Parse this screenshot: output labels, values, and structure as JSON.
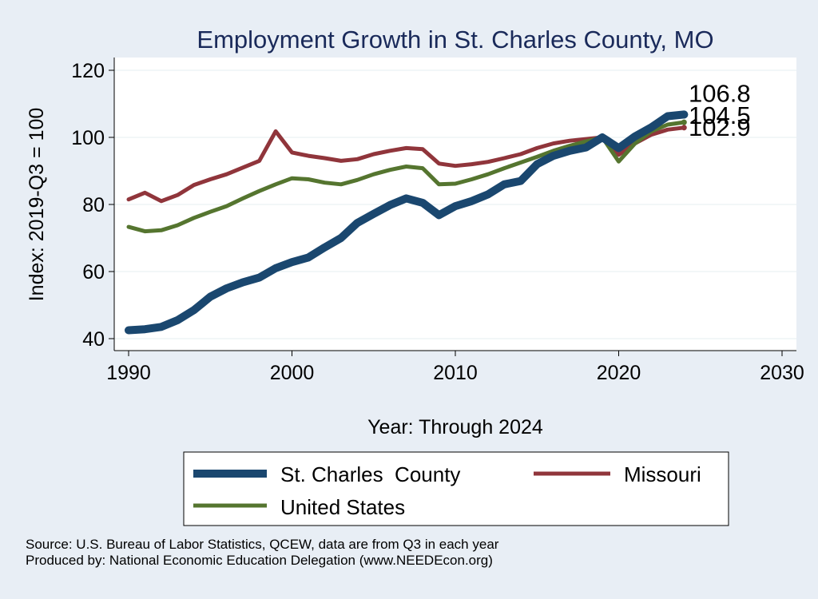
{
  "chart_data": {
    "type": "line",
    "title": "Employment Growth in St. Charles County, MO",
    "xlabel": "Year: Through 2024",
    "ylabel": "Index: 2019-Q3 = 100",
    "xlim": [
      1990,
      2030
    ],
    "ylim": [
      40,
      120
    ],
    "xticks": [
      "1990",
      "2000",
      "2010",
      "2020",
      "2030"
    ],
    "yticks": [
      "40",
      "60",
      "80",
      "100",
      "120"
    ],
    "grid": true,
    "legend_position": "bottom",
    "x": [
      1990,
      1991,
      1992,
      1993,
      1994,
      1995,
      1996,
      1997,
      1998,
      1999,
      2000,
      2001,
      2002,
      2003,
      2004,
      2005,
      2006,
      2007,
      2008,
      2009,
      2010,
      2011,
      2012,
      2013,
      2014,
      2015,
      2016,
      2017,
      2018,
      2019,
      2020,
      2021,
      2022,
      2023,
      2024
    ],
    "series": [
      {
        "name": "St. Charles  County",
        "color": "#1a476f",
        "values": [
          42.5,
          42.8,
          43.5,
          45.5,
          48.5,
          52.5,
          55.0,
          56.8,
          58.2,
          61.0,
          62.8,
          64.2,
          67.2,
          70.0,
          74.5,
          77.2,
          79.8,
          81.8,
          80.5,
          76.8,
          79.5,
          81.0,
          83.0,
          86.0,
          87.0,
          92.0,
          94.5,
          96.0,
          97.0,
          100.0,
          96.8,
          100.3,
          103.0,
          106.3,
          106.8
        ],
        "end_label": "106.8"
      },
      {
        "name": "Missouri",
        "color": "#90353b",
        "values": [
          81.5,
          83.5,
          81.0,
          82.8,
          85.8,
          87.5,
          89.0,
          91.0,
          93.0,
          101.8,
          95.5,
          94.5,
          93.8,
          93.0,
          93.5,
          95.0,
          96.0,
          96.8,
          96.5,
          92.2,
          91.5,
          92.0,
          92.7,
          93.8,
          95.0,
          96.8,
          98.2,
          99.0,
          99.5,
          100.0,
          94.8,
          98.2,
          100.8,
          102.3,
          102.9
        ],
        "end_label": "102.9"
      },
      {
        "name": "United States",
        "color": "#55752f",
        "values": [
          73.3,
          72.0,
          72.3,
          73.8,
          76.0,
          77.8,
          79.5,
          81.8,
          84.0,
          86.0,
          87.8,
          87.5,
          86.5,
          86.0,
          87.3,
          89.0,
          90.3,
          91.3,
          90.8,
          86.0,
          86.2,
          87.5,
          89.0,
          90.8,
          92.5,
          94.2,
          96.0,
          97.5,
          98.8,
          100.0,
          92.8,
          98.2,
          101.8,
          103.8,
          104.5
        ],
        "end_label": "104.5"
      }
    ]
  },
  "legend": {
    "items": [
      "St. Charles  County",
      "Missouri",
      "United States"
    ]
  },
  "source": {
    "line1": "Source: U.S. Bureau of Labor Statistics, QCEW, data are from Q3 in each year",
    "line2": "Produced by: National Economic Education Delegation (www.NEEDEcon.org)"
  }
}
